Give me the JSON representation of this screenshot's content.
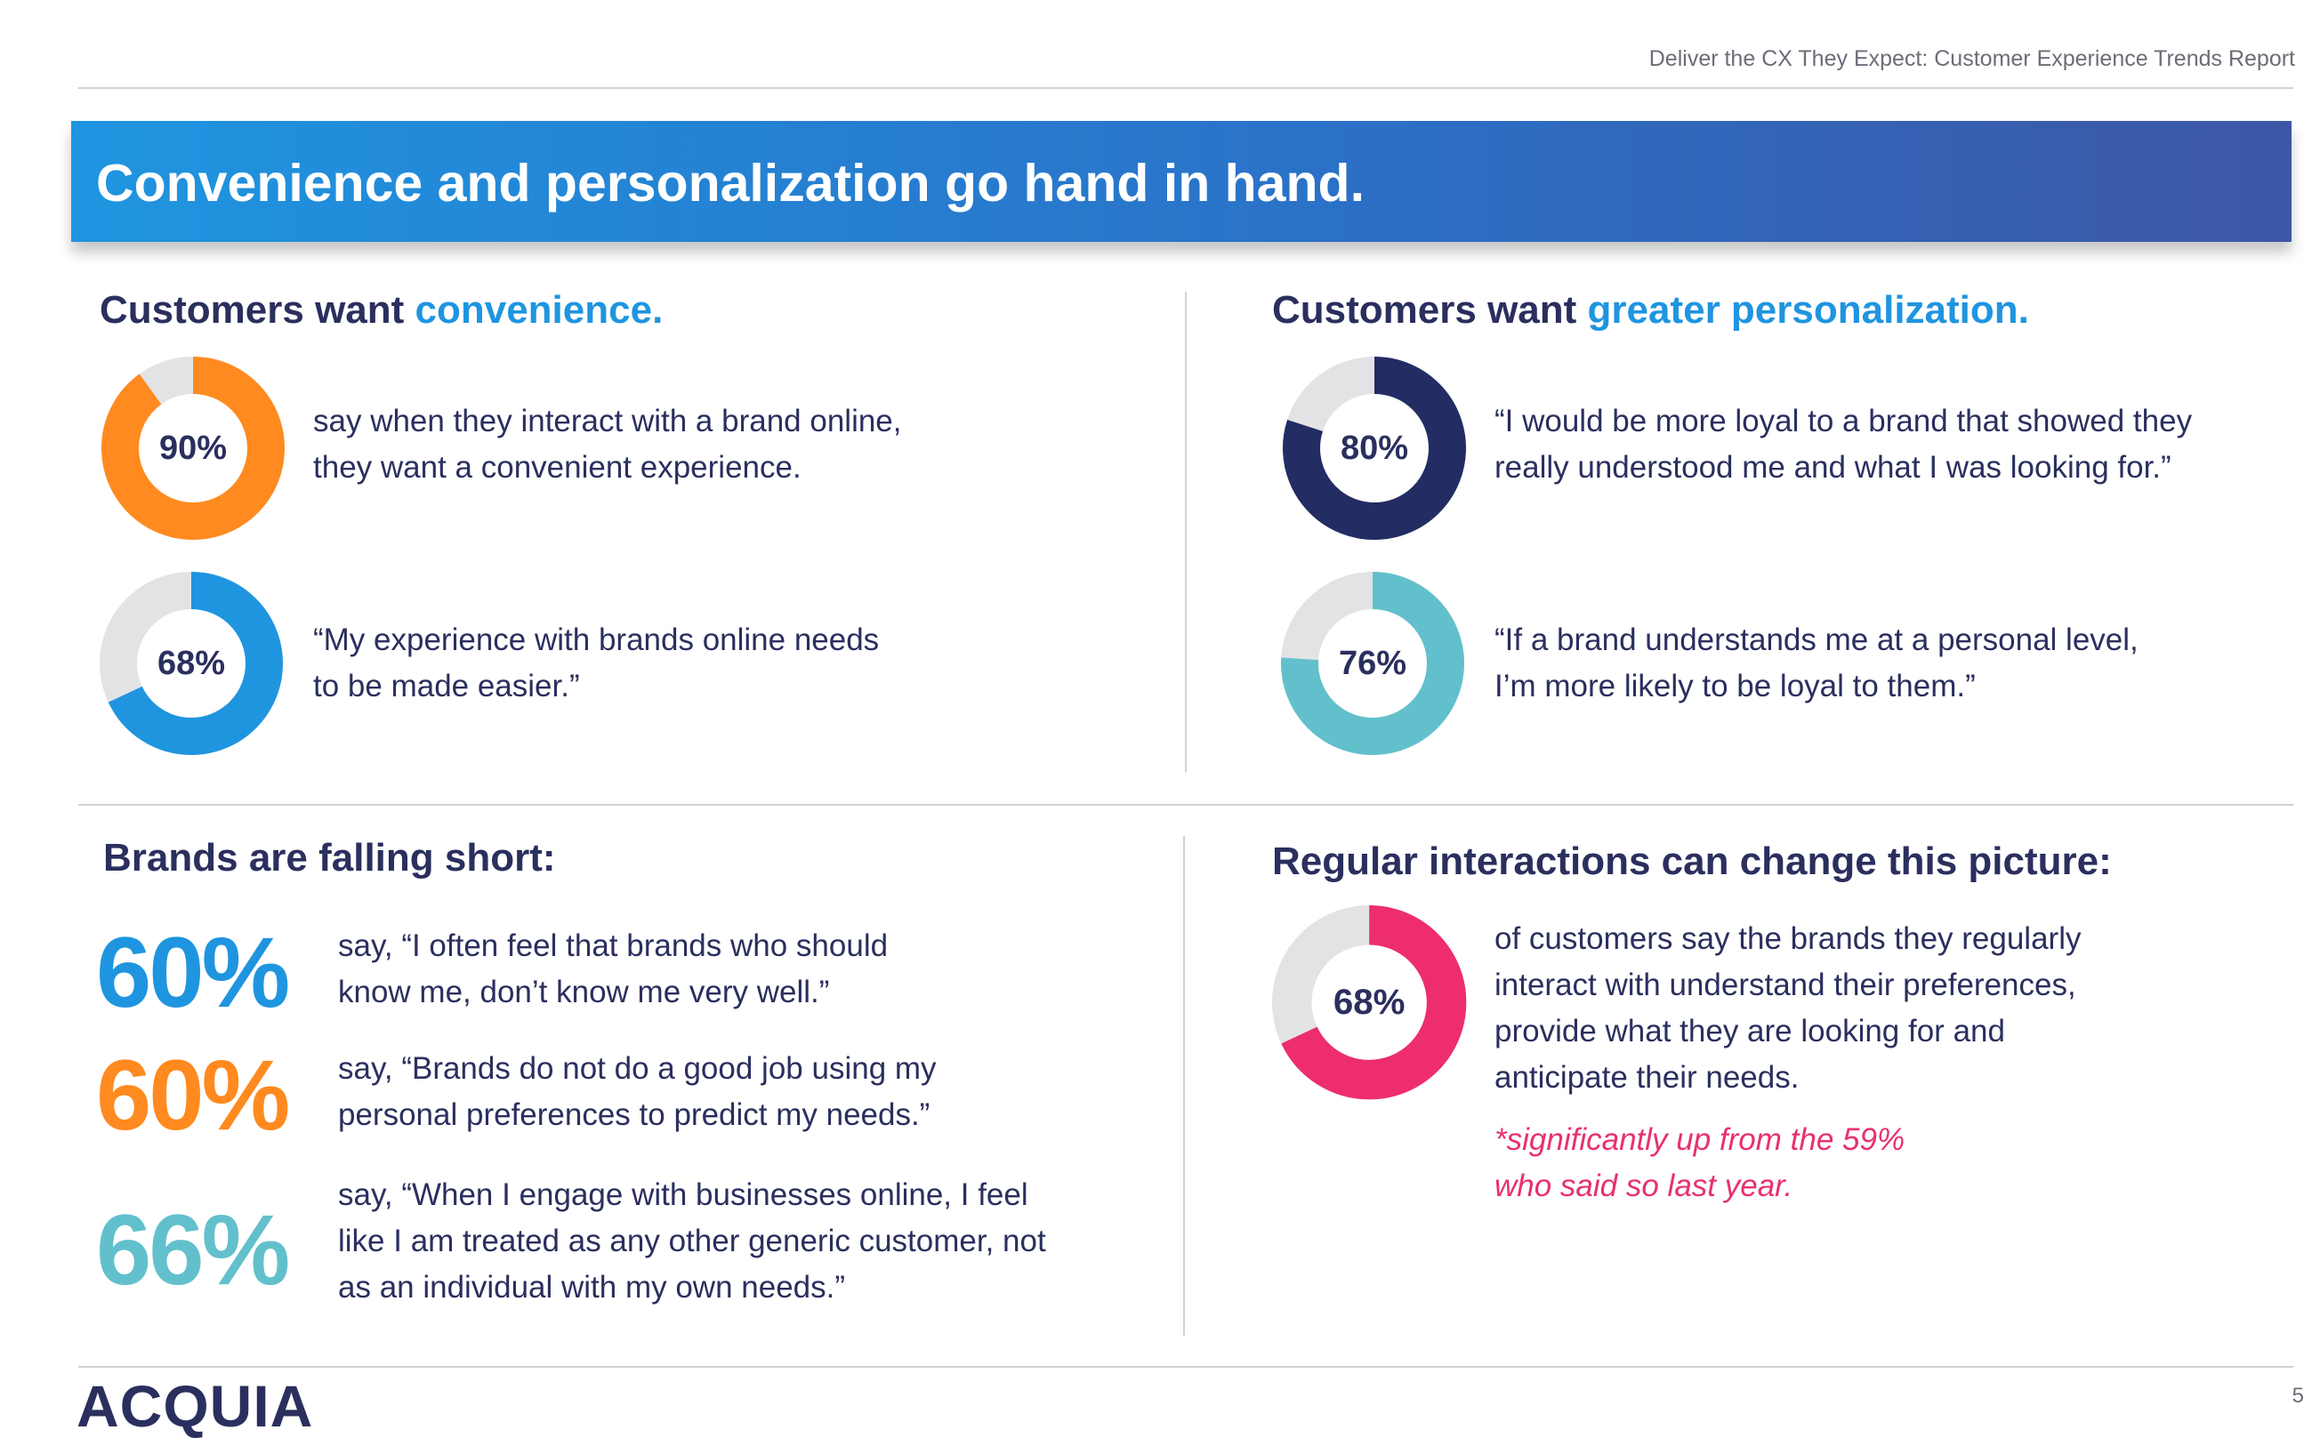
{
  "header": {
    "report_title": "Deliver the CX They Expect: Customer Experience Trends Report"
  },
  "banner": {
    "title": "Convenience and personalization go hand in hand."
  },
  "convenience": {
    "heading_prefix": "Customers want ",
    "heading_accent": "convenience.",
    "stats": [
      {
        "percent_label": "90%",
        "value": 0.9,
        "color": "#ff8a1f",
        "text_lines": [
          "say when they interact with a brand online,",
          "they want a convenient experience."
        ]
      },
      {
        "percent_label": "68%",
        "value": 0.68,
        "color": "#1f95e0",
        "text_lines": [
          "“My experience with brands online needs",
          "to be made easier.”"
        ]
      }
    ]
  },
  "personalization": {
    "heading_prefix": "Customers want ",
    "heading_accent": "greater personalization.",
    "stats": [
      {
        "percent_label": "80%",
        "value": 0.8,
        "color": "#232c63",
        "text_lines": [
          "“I would be more loyal to a brand that showed they",
          "really understood me and what I was looking for.”"
        ]
      },
      {
        "percent_label": "76%",
        "value": 0.76,
        "color": "#62c0cc",
        "text_lines": [
          "“If a brand understands me at a personal level,",
          "I’m more likely to be loyal to them.”"
        ]
      }
    ]
  },
  "falling_short": {
    "heading": "Brands are falling short:",
    "stats": [
      {
        "percent_label": "60%",
        "color": "#1f95e0",
        "text_lines": [
          "say, “I often feel that brands who should",
          "know me, don’t know me very well.”"
        ]
      },
      {
        "percent_label": "60%",
        "color": "#ff8a1f",
        "text_lines": [
          "say, “Brands do not do a good job using my",
          "personal preferences to predict my needs.”"
        ]
      },
      {
        "percent_label": "66%",
        "color": "#62c0cc",
        "text_lines": [
          "say, “When I engage with businesses online, I feel",
          "like I am treated as any other generic customer, not",
          "as an individual with my own needs.”"
        ]
      }
    ]
  },
  "regular_interactions": {
    "heading": "Regular interactions can change this picture:",
    "stat": {
      "percent_label": "68%",
      "value": 0.68,
      "color": "#ee2d6f",
      "text_lines": [
        "of customers say the brands they regularly",
        "interact with understand their preferences,",
        "provide what they are looking for and",
        "anticipate their needs."
      ]
    },
    "note_lines": [
      "*significantly up from the 59%",
      "who said so last year."
    ]
  },
  "colors": {
    "track": "#e3e3e6",
    "navy": "#2a2f5e",
    "blue_accent": "#1f95e0"
  },
  "footer": {
    "logo_text": "ACQUIA",
    "page_number": "5"
  }
}
